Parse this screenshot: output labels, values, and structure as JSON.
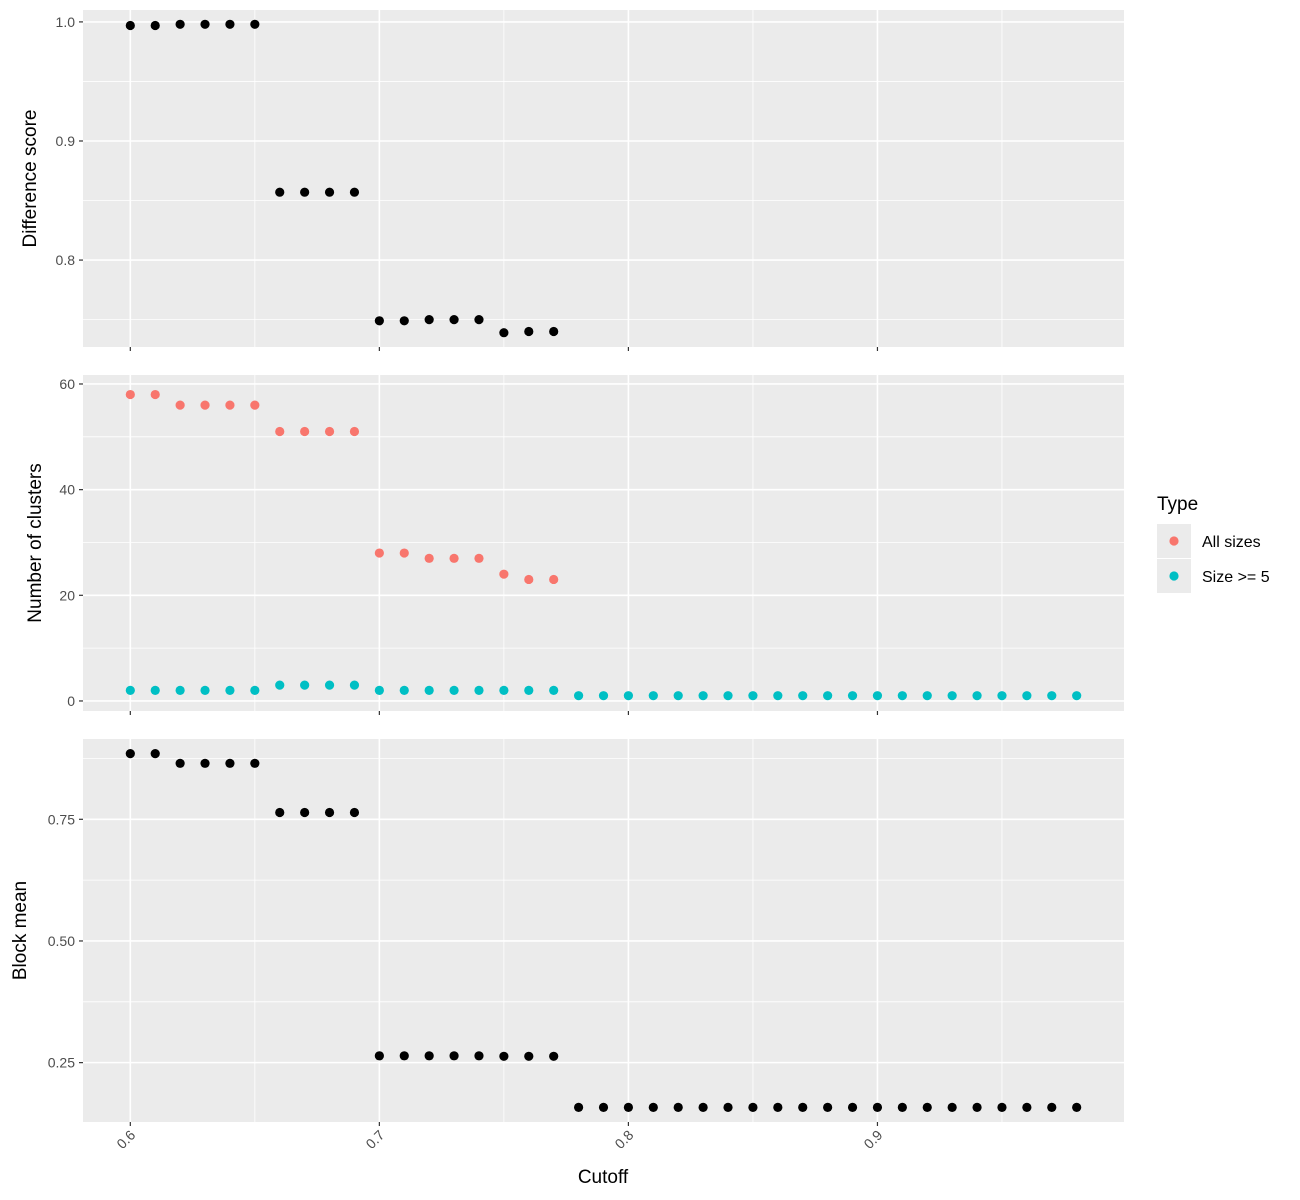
{
  "chart_data": {
    "type": "scatter",
    "xlabel": "Cutoff",
    "x_ticks": [
      0.6,
      0.7,
      0.8,
      0.9
    ],
    "x_tick_labels": [
      "0.6",
      "0.7",
      "0.8",
      "0.9"
    ],
    "xlim": [
      0.581,
      0.999
    ],
    "grid": true,
    "legend": {
      "title": "Type",
      "position": "right",
      "entries": [
        {
          "label": "All sizes",
          "color": "#F8766D"
        },
        {
          "label": "Size >= 5",
          "color": "#00BFC4"
        }
      ]
    },
    "panels": [
      {
        "ylabel": "Difference score",
        "ylim": [
          0.727,
          1.01
        ],
        "y_ticks": [
          0.8,
          0.9,
          1.0
        ],
        "y_tick_labels": [
          "0.8",
          "0.9",
          "1.0"
        ],
        "series": [
          {
            "color": "#000000",
            "x": [
              0.6,
              0.61,
              0.62,
              0.63,
              0.64,
              0.65,
              0.66,
              0.67,
              0.68,
              0.69,
              0.7,
              0.71,
              0.72,
              0.73,
              0.74,
              0.75,
              0.76,
              0.77
            ],
            "y": [
              0.997,
              0.997,
              0.998,
              0.998,
              0.998,
              0.998,
              0.857,
              0.857,
              0.857,
              0.857,
              0.749,
              0.749,
              0.75,
              0.75,
              0.75,
              0.739,
              0.74,
              0.74
            ]
          }
        ]
      },
      {
        "ylabel": "Number of clusters",
        "ylim": [
          -1.9,
          61.7
        ],
        "y_ticks": [
          0,
          20,
          40,
          60
        ],
        "y_tick_labels": [
          "0",
          "20",
          "40",
          "60"
        ],
        "series": [
          {
            "name": "All sizes",
            "color": "#F8766D",
            "x": [
              0.6,
              0.61,
              0.62,
              0.63,
              0.64,
              0.65,
              0.66,
              0.67,
              0.68,
              0.69,
              0.7,
              0.71,
              0.72,
              0.73,
              0.74,
              0.75,
              0.76,
              0.77
            ],
            "y": [
              58,
              58,
              56,
              56,
              56,
              56,
              51,
              51,
              51,
              51,
              28,
              28,
              27,
              27,
              27,
              24,
              23,
              23
            ]
          },
          {
            "name": "Size >= 5",
            "color": "#00BFC4",
            "x": [
              0.6,
              0.61,
              0.62,
              0.63,
              0.64,
              0.65,
              0.66,
              0.67,
              0.68,
              0.69,
              0.7,
              0.71,
              0.72,
              0.73,
              0.74,
              0.75,
              0.76,
              0.77,
              0.78,
              0.79,
              0.8,
              0.81,
              0.82,
              0.83,
              0.84,
              0.85,
              0.86,
              0.87,
              0.88,
              0.89,
              0.9,
              0.91,
              0.92,
              0.93,
              0.94,
              0.95,
              0.96,
              0.97,
              0.98
            ],
            "y": [
              2,
              2,
              2,
              2,
              2,
              2,
              3,
              3,
              3,
              3,
              2,
              2,
              2,
              2,
              2,
              2,
              2,
              2,
              1,
              1,
              1,
              1,
              1,
              1,
              1,
              1,
              1,
              1,
              1,
              1,
              1,
              1,
              1,
              1,
              1,
              1,
              1,
              1,
              1
            ]
          }
        ]
      },
      {
        "ylabel": "Block mean",
        "ylim": [
          0.128,
          0.915
        ],
        "y_ticks": [
          0.25,
          0.5,
          0.75
        ],
        "y_tick_labels": [
          "0.25",
          "0.50",
          "0.75"
        ],
        "series": [
          {
            "color": "#000000",
            "x": [
              0.6,
              0.61,
              0.62,
              0.63,
              0.64,
              0.65,
              0.66,
              0.67,
              0.68,
              0.69,
              0.7,
              0.71,
              0.72,
              0.73,
              0.74,
              0.75,
              0.76,
              0.77,
              0.78,
              0.79,
              0.8,
              0.81,
              0.82,
              0.83,
              0.84,
              0.85,
              0.86,
              0.87,
              0.88,
              0.89,
              0.9,
              0.91,
              0.92,
              0.93,
              0.94,
              0.95,
              0.96,
              0.97,
              0.98
            ],
            "y": [
              0.885,
              0.885,
              0.865,
              0.865,
              0.865,
              0.865,
              0.764,
              0.764,
              0.764,
              0.764,
              0.264,
              0.264,
              0.264,
              0.264,
              0.264,
              0.263,
              0.263,
              0.263,
              0.158,
              0.158,
              0.158,
              0.158,
              0.158,
              0.158,
              0.158,
              0.158,
              0.158,
              0.158,
              0.158,
              0.158,
              0.158,
              0.158,
              0.158,
              0.158,
              0.158,
              0.158,
              0.158,
              0.158,
              0.158
            ]
          }
        ]
      }
    ]
  }
}
